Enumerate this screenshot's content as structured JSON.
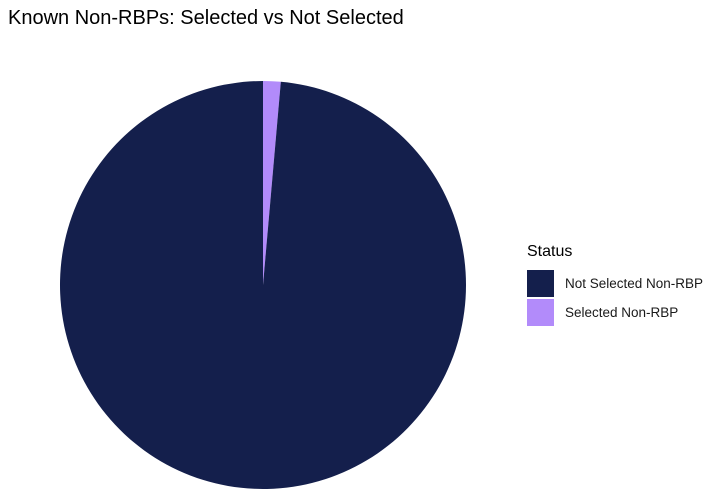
{
  "chart_data": {
    "type": "pie",
    "title": "Known Non-RBPs: Selected vs Not Selected",
    "legend": {
      "title": "Status",
      "position": "right"
    },
    "slices": [
      {
        "label": "Not Selected Non-RBP",
        "value": 98.6,
        "color": "#141f4c"
      },
      {
        "label": "Selected Non-RBP",
        "value": 1.4,
        "color": "#b28bfa"
      }
    ]
  }
}
